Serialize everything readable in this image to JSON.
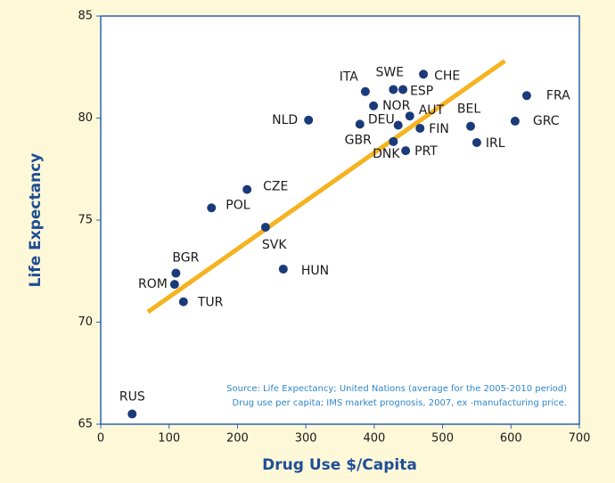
{
  "chart_data": {
    "type": "scatter",
    "xlabel": "Drug Use $/Capita",
    "ylabel": "Life Expectancy",
    "annotations": [
      "Source: Life Expectancy; United Nations (average for the 2005-2010 period)",
      "Drug use per capita; IMS market prognosis, 2007, ex -manufacturing price."
    ],
    "xlim": [
      0,
      700
    ],
    "xticks": [
      0,
      100,
      200,
      300,
      400,
      500,
      600,
      700
    ],
    "ylim": [
      65,
      85
    ],
    "yticks": [
      65,
      70,
      75,
      80,
      85
    ],
    "color": "#1a3a7a",
    "trend_color": "#f5b320",
    "trendline": {
      "x": [
        69,
        591
      ],
      "y": [
        70.5,
        82.8
      ]
    },
    "labels": [
      "RUS",
      "ROM",
      "BGR",
      "TUR",
      "POL",
      "CZE",
      "SVK",
      "HUN",
      "NLD",
      "GBR",
      "DEU",
      "DNK",
      "PRT",
      "FIN",
      "AUT",
      "NOR",
      "ITA",
      "SWE",
      "ESP",
      "CHE",
      "BEL",
      "IRL",
      "FRA",
      "GRC"
    ],
    "x": [
      46,
      108,
      110,
      121,
      162,
      214,
      241,
      267,
      304,
      379,
      435,
      428,
      446,
      467,
      452,
      399,
      387,
      428,
      442,
      472,
      541,
      550,
      623,
      606
    ],
    "y": [
      65.5,
      71.85,
      72.4,
      71.0,
      75.6,
      76.5,
      74.65,
      72.6,
      79.9,
      79.7,
      79.65,
      78.85,
      78.4,
      79.5,
      80.1,
      80.6,
      81.3,
      81.4,
      81.4,
      82.15,
      79.6,
      78.8,
      81.1,
      79.85
    ]
  }
}
